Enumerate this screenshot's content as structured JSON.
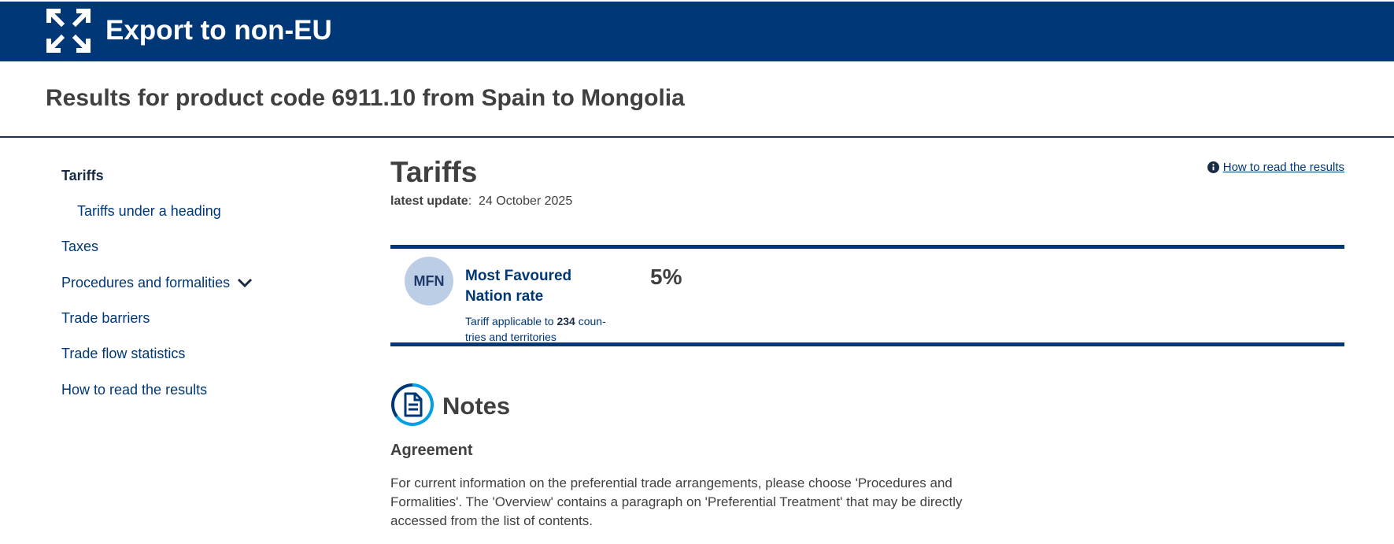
{
  "banner": {
    "title": "Export to non-EU",
    "icon": "expand-arrows-icon"
  },
  "results_title": "Results for product code 6911.10 from Spain to Mongolia",
  "sidebar": {
    "items": [
      {
        "label": "Tariffs"
      },
      {
        "label": "Tariffs under a heading"
      },
      {
        "label": "Taxes"
      },
      {
        "label": "Procedures and formalities"
      },
      {
        "label": "Trade barriers"
      },
      {
        "label": "Trade flow statistics"
      },
      {
        "label": "How to read the results"
      }
    ]
  },
  "main": {
    "title": "Tariffs",
    "update_label": "latest update",
    "update_sep": ":",
    "update_date": "24 October 2025",
    "howto_link": "How to read the results",
    "mfn": {
      "badge": "MFN",
      "name": "Most Favoured Nation rate",
      "desc_pre": "Tariff applicable to ",
      "desc_count": "234",
      "desc_post": " coun­tries and territories",
      "rate": "5%"
    },
    "notes": {
      "title": "Notes",
      "agreement_heading": "Agreement",
      "agreement_text": "For current information on the preferential trade arrangements, please choose 'Procedures and Formalities'. The 'Overview' contains a paragraph on 'Preferential Treatment' that may be directly accessed from the list of contents."
    }
  },
  "colors": {
    "brand": "#003776",
    "badge": "#bccde6",
    "text": "#404040",
    "accent": "#00a0e3"
  }
}
